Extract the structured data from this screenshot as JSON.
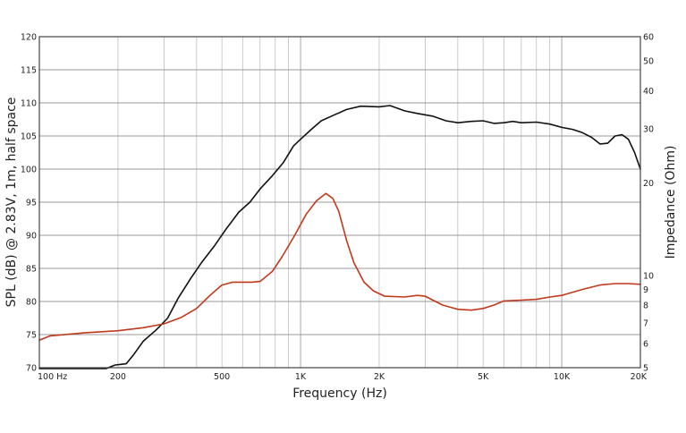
{
  "chart_data": {
    "type": "line",
    "xlabel": "Frequency (Hz)",
    "ylabel": "SPL (dB) @ 2.83V, 1m, half space",
    "y2label": "Impedance (Ohm)",
    "xscale": "log",
    "xlim": [
      100,
      20000
    ],
    "ylim": [
      70,
      120
    ],
    "y2scale": "log",
    "y2lim": [
      5,
      60
    ],
    "grid": true,
    "x_ticks": [
      {
        "value": 100,
        "label": "100  Hz"
      },
      {
        "value": 200,
        "label": "200"
      },
      {
        "value": 500,
        "label": "500"
      },
      {
        "value": 1000,
        "label": "1K"
      },
      {
        "value": 2000,
        "label": "2K"
      },
      {
        "value": 5000,
        "label": "5K"
      },
      {
        "value": 10000,
        "label": "10K"
      },
      {
        "value": 20000,
        "label": "20K"
      }
    ],
    "y_ticks": [
      {
        "value": 70,
        "label": "70"
      },
      {
        "value": 75,
        "label": "75"
      },
      {
        "value": 80,
        "label": "80"
      },
      {
        "value": 85,
        "label": "85"
      },
      {
        "value": 90,
        "label": "90"
      },
      {
        "value": 95,
        "label": "95"
      },
      {
        "value": 100,
        "label": "100"
      },
      {
        "value": 105,
        "label": "105"
      },
      {
        "value": 110,
        "label": "110"
      },
      {
        "value": 115,
        "label": "115"
      },
      {
        "value": 120,
        "label": "120"
      }
    ],
    "y2_ticks": [
      {
        "value": 5,
        "label": "5"
      },
      {
        "value": 6,
        "label": "6"
      },
      {
        "value": 7,
        "label": "7"
      },
      {
        "value": 8,
        "label": "8"
      },
      {
        "value": 9,
        "label": "9"
      },
      {
        "value": 10,
        "label": "10"
      },
      {
        "value": 20,
        "label": "20"
      },
      {
        "value": 30,
        "label": "30"
      },
      {
        "value": 40,
        "label": "40"
      },
      {
        "value": 50,
        "label": "50"
      },
      {
        "value": 60,
        "label": "60"
      }
    ],
    "series": [
      {
        "axis": "left",
        "color": "#111111",
        "points": [
          [
            100,
            69.2
          ],
          [
            150,
            69.4
          ],
          [
            180,
            69.8
          ],
          [
            195,
            70.4
          ],
          [
            205,
            70.5
          ],
          [
            215,
            70.6
          ],
          [
            230,
            72
          ],
          [
            250,
            74
          ],
          [
            280,
            75.7
          ],
          [
            310,
            77.5
          ],
          [
            340,
            80.5
          ],
          [
            380,
            83.5
          ],
          [
            420,
            86
          ],
          [
            470,
            88.5
          ],
          [
            520,
            91
          ],
          [
            580,
            93.5
          ],
          [
            640,
            95
          ],
          [
            700,
            97
          ],
          [
            780,
            99
          ],
          [
            860,
            101
          ],
          [
            940,
            103.5
          ],
          [
            1000,
            104.5
          ],
          [
            1100,
            106
          ],
          [
            1200,
            107.3
          ],
          [
            1350,
            108.2
          ],
          [
            1500,
            109
          ],
          [
            1700,
            109.5
          ],
          [
            2000,
            109.4
          ],
          [
            2200,
            109.6
          ],
          [
            2500,
            108.8
          ],
          [
            2800,
            108.4
          ],
          [
            3200,
            108
          ],
          [
            3600,
            107.3
          ],
          [
            4000,
            107
          ],
          [
            4500,
            107.2
          ],
          [
            5000,
            107.3
          ],
          [
            5500,
            106.9
          ],
          [
            6000,
            107
          ],
          [
            6500,
            107.2
          ],
          [
            7000,
            107
          ],
          [
            8000,
            107.1
          ],
          [
            9000,
            106.8
          ],
          [
            10000,
            106.3
          ],
          [
            11000,
            106
          ],
          [
            12000,
            105.5
          ],
          [
            13000,
            104.8
          ],
          [
            14000,
            103.8
          ],
          [
            15000,
            103.9
          ],
          [
            16000,
            105
          ],
          [
            17000,
            105.2
          ],
          [
            18000,
            104.5
          ],
          [
            19000,
            102.5
          ],
          [
            20000,
            100
          ]
        ]
      },
      {
        "axis": "right",
        "color": "#c0391b",
        "points": [
          [
            100,
            6.15
          ],
          [
            110,
            6.35
          ],
          [
            150,
            6.5
          ],
          [
            200,
            6.6
          ],
          [
            250,
            6.75
          ],
          [
            300,
            6.95
          ],
          [
            350,
            7.3
          ],
          [
            400,
            7.8
          ],
          [
            450,
            8.6
          ],
          [
            500,
            9.3
          ],
          [
            550,
            9.5
          ],
          [
            600,
            9.5
          ],
          [
            650,
            9.5
          ],
          [
            700,
            9.55
          ],
          [
            780,
            10.3
          ],
          [
            850,
            11.5
          ],
          [
            950,
            13.5
          ],
          [
            1050,
            15.8
          ],
          [
            1150,
            17.5
          ],
          [
            1250,
            18.5
          ],
          [
            1330,
            17.8
          ],
          [
            1400,
            16.2
          ],
          [
            1500,
            13
          ],
          [
            1600,
            11
          ],
          [
            1750,
            9.5
          ],
          [
            1900,
            8.9
          ],
          [
            2100,
            8.55
          ],
          [
            2500,
            8.5
          ],
          [
            2800,
            8.6
          ],
          [
            3000,
            8.55
          ],
          [
            3500,
            8
          ],
          [
            4000,
            7.75
          ],
          [
            4500,
            7.7
          ],
          [
            5000,
            7.8
          ],
          [
            5500,
            8
          ],
          [
            6000,
            8.25
          ],
          [
            7000,
            8.3
          ],
          [
            8000,
            8.35
          ],
          [
            9000,
            8.5
          ],
          [
            10000,
            8.6
          ],
          [
            12000,
            9
          ],
          [
            14000,
            9.3
          ],
          [
            16000,
            9.4
          ],
          [
            18000,
            9.4
          ],
          [
            20000,
            9.35
          ]
        ]
      }
    ]
  }
}
